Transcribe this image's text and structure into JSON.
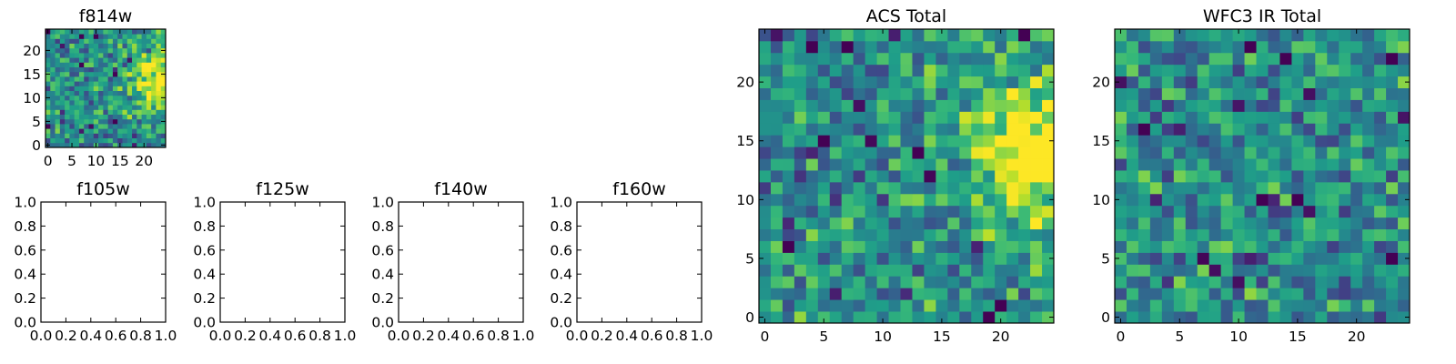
{
  "chart_data": [
    {
      "id": "f814w",
      "type": "heatmap",
      "title": "f814w",
      "grid_size": 25,
      "xlim": [
        -0.5,
        24.5
      ],
      "ylim": [
        -0.5,
        24.5
      ],
      "xticks": [
        0,
        5,
        10,
        15,
        20
      ],
      "yticks": [
        0,
        5,
        10,
        15,
        20
      ],
      "seed": 11,
      "bright_region": "right-middle",
      "colormap": "viridis"
    },
    {
      "id": "f105w",
      "type": "empty",
      "title": "f105w",
      "xlim": [
        0,
        1
      ],
      "ylim": [
        0,
        1
      ],
      "xticks": [
        "0.0",
        "0.2",
        "0.4",
        "0.6",
        "0.8",
        "1.0"
      ],
      "yticks": [
        "0.0",
        "0.2",
        "0.4",
        "0.6",
        "0.8",
        "1.0"
      ]
    },
    {
      "id": "f125w",
      "type": "empty",
      "title": "f125w",
      "xlim": [
        0,
        1
      ],
      "ylim": [
        0,
        1
      ],
      "xticks": [
        "0.0",
        "0.2",
        "0.4",
        "0.6",
        "0.8",
        "1.0"
      ],
      "yticks": [
        "0.0",
        "0.2",
        "0.4",
        "0.6",
        "0.8",
        "1.0"
      ]
    },
    {
      "id": "f140w",
      "type": "empty",
      "title": "f140w",
      "xlim": [
        0,
        1
      ],
      "ylim": [
        0,
        1
      ],
      "xticks": [
        "0.0",
        "0.2",
        "0.4",
        "0.6",
        "0.8",
        "1.0"
      ],
      "yticks": [
        "0.0",
        "0.2",
        "0.4",
        "0.6",
        "0.8",
        "1.0"
      ]
    },
    {
      "id": "f160w",
      "type": "empty",
      "title": "f160w",
      "xlim": [
        0,
        1
      ],
      "ylim": [
        0,
        1
      ],
      "xticks": [
        "0.0",
        "0.2",
        "0.4",
        "0.6",
        "0.8",
        "1.0"
      ],
      "yticks": [
        "0.0",
        "0.2",
        "0.4",
        "0.6",
        "0.8",
        "1.0"
      ]
    },
    {
      "id": "acs-total",
      "type": "heatmap",
      "title": "ACS Total",
      "grid_size": 25,
      "xlim": [
        -0.5,
        24.5
      ],
      "ylim": [
        -0.5,
        24.5
      ],
      "xticks": [
        0,
        5,
        10,
        15,
        20
      ],
      "yticks": [
        0,
        5,
        10,
        15,
        20
      ],
      "seed": 7,
      "bright_region": "right-middle",
      "colormap": "viridis"
    },
    {
      "id": "wfc3-ir-total",
      "type": "heatmap",
      "title": "WFC3 IR Total",
      "grid_size": 25,
      "xlim": [
        -0.5,
        24.5
      ],
      "ylim": [
        -0.5,
        24.5
      ],
      "xticks": [
        0,
        5,
        10,
        15,
        20
      ],
      "yticks": [
        0,
        5,
        10,
        15,
        20
      ],
      "seed": 23,
      "bright_region": "none",
      "colormap": "viridis"
    }
  ]
}
